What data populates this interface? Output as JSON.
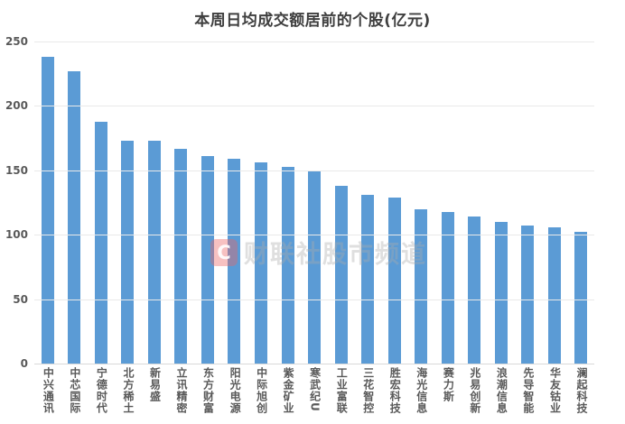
{
  "chart_data": {
    "type": "bar",
    "title": "本周日均成交额居前的个股(亿元)",
    "categories": [
      "中兴通讯",
      "中芯国际",
      "宁德时代",
      "北方稀土",
      "新易盛",
      "立讯精密",
      "东方财富",
      "阳光电源",
      "中际旭创",
      "紫金矿业",
      "寒武纪U",
      "工业富联",
      "三花智控",
      "胜宏科技",
      "海光信息",
      "赛力斯",
      "兆易创新",
      "浪潮信息",
      "先导智能",
      "华友钴业",
      "澜起科技"
    ],
    "values": [
      238,
      227,
      188,
      173,
      173,
      167,
      161,
      159,
      156,
      153,
      149,
      138,
      131,
      129,
      120,
      118,
      114,
      110,
      107,
      106,
      102
    ],
    "xlabel": "",
    "ylabel": "",
    "ylim": [
      0,
      250
    ],
    "yticks": [
      0,
      50,
      100,
      150,
      200,
      250
    ],
    "grid": "horizontal",
    "legend_position": "none",
    "bar_color": "#5b9bd5"
  },
  "watermark": {
    "logo_letter": "C",
    "text": "财联社股市频道",
    "logo_color": "#eb6464"
  }
}
